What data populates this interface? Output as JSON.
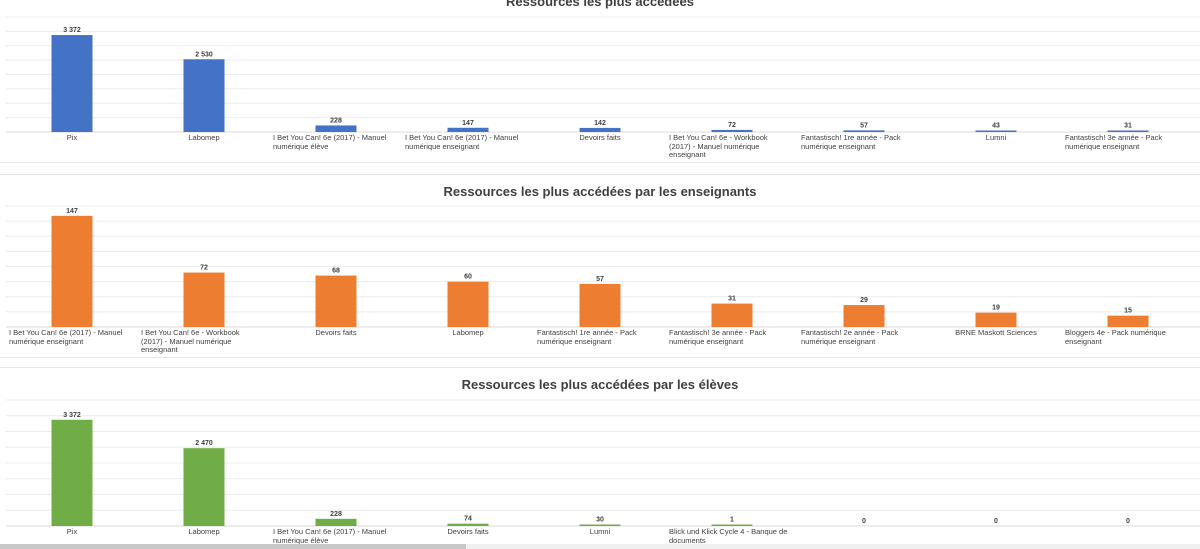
{
  "chart_data": [
    {
      "type": "bar",
      "title": "Ressources les plus accédées",
      "color": "#4472c4",
      "xlabel": "",
      "ylabel": "",
      "ylim": [
        0,
        4000
      ],
      "grid": true,
      "categories": [
        "Pix",
        "Labomep",
        "I Bet You Can! 6e (2017)  - Manuel numérique élève",
        "I Bet You Can! 6e (2017)  - Manuel numérique enseignant",
        "Devoirs faits",
        "I Bet You Can! 6e - Workbook (2017) - Manuel numérique enseignant",
        "Fantastisch! 1re année - Pack numérique enseignant",
        "Lumni",
        "Fantastisch! 3e année - Pack numérique enseignant"
      ],
      "values": [
        3372,
        2530,
        228,
        147,
        142,
        72,
        57,
        43,
        31
      ],
      "value_labels": [
        "3 372",
        "2 530",
        "228",
        "147",
        "142",
        "72",
        "57",
        "43",
        "31"
      ]
    },
    {
      "type": "bar",
      "title": "Ressources les plus accédées par les enseignants",
      "color": "#ed7d31",
      "xlabel": "",
      "ylabel": "",
      "ylim": [
        0,
        160
      ],
      "grid": true,
      "categories": [
        "I Bet You Can! 6e (2017)  - Manuel numérique enseignant",
        "I Bet You Can! 6e - Workbook (2017) - Manuel numérique enseignant",
        "Devoirs faits",
        "Labomep",
        "Fantastisch! 1re année - Pack numérique enseignant",
        "Fantastisch! 3e année - Pack numérique enseignant",
        "Fantastisch! 2e année - Pack numérique enseignant",
        "BRNE Maskott Sciences",
        "Bloggers 4e - Pack numérique enseignant"
      ],
      "values": [
        147,
        72,
        68,
        60,
        57,
        31,
        29,
        19,
        15
      ],
      "value_labels": [
        "147",
        "72",
        "68",
        "60",
        "57",
        "31",
        "29",
        "19",
        "15"
      ]
    },
    {
      "type": "bar",
      "title": "Ressources les plus accédées par les élèves",
      "color": "#70ad47",
      "xlabel": "",
      "ylabel": "",
      "ylim": [
        0,
        4000
      ],
      "grid": true,
      "categories": [
        "Pix",
        "Labomep",
        "I Bet You Can! 6e (2017)  - Manuel numérique élève",
        "Devoirs faits",
        "Lumni",
        "Blick und Klick Cycle 4 - Banque de documents",
        "",
        "",
        ""
      ],
      "values": [
        3372,
        2470,
        228,
        74,
        30,
        1,
        0,
        0,
        0
      ],
      "value_labels": [
        "3 372",
        "2 470",
        "228",
        "74",
        "30",
        "1",
        "0",
        "0",
        "0"
      ]
    }
  ]
}
